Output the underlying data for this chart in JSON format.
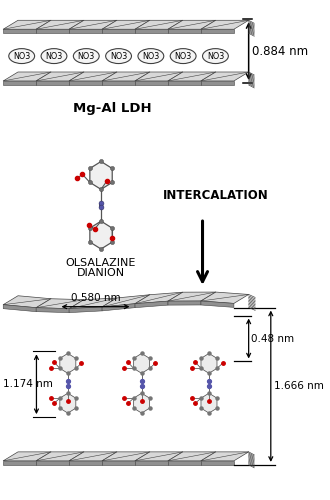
{
  "bg_color": "#ffffff",
  "no3_label": "NO3",
  "mgal_label": "Mg-Al LDH",
  "olsal_label1": "OLSALAZINE",
  "olsal_label2": "DIANION",
  "intercal_label": "INTERCALATION",
  "dim1_label": "0.884 nm",
  "dim2_label": "0.48 nm",
  "dim3_label": "1.666 nm",
  "dim4_label": "1.174 nm",
  "dim5_label": "0.580 nm",
  "atom_gray": "#808080",
  "atom_red": "#cc0000",
  "atom_blue": "#5555aa",
  "sheet_light": "#d8d8d8",
  "sheet_dark": "#909090",
  "sheet_edge": "#444444"
}
